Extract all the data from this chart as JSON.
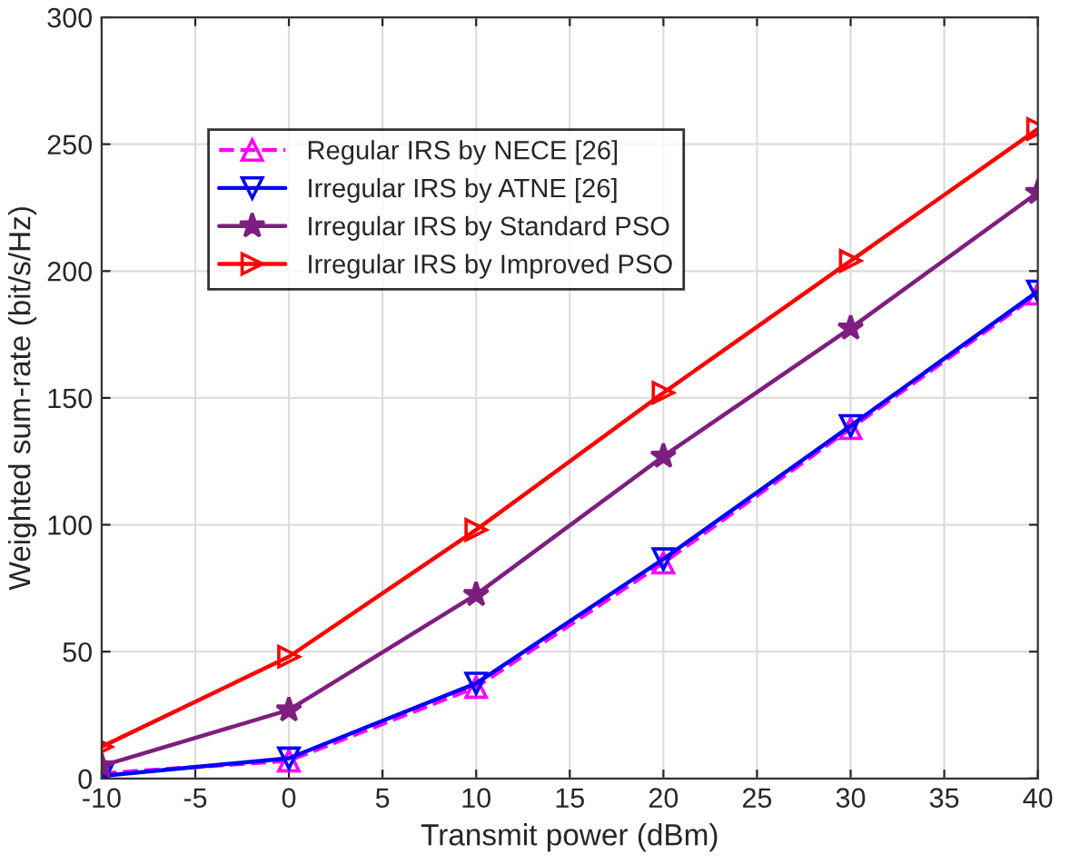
{
  "chart_data": {
    "type": "line",
    "xlabel": "Transmit power (dBm)",
    "ylabel": "Weighted sum-rate (bit/s/Hz)",
    "x": [
      -10,
      0,
      10,
      20,
      30,
      40
    ],
    "series": [
      {
        "name": "Regular IRS by NECE [26]",
        "color": "#ff00ff",
        "values": [
          2,
          7,
          36,
          85,
          138,
          191
        ],
        "marker": "triangle",
        "line_style": "dashed"
      },
      {
        "name": "Irregular IRS by ATNE [26]",
        "color": "#0000ff",
        "values": [
          1,
          8,
          37.5,
          86.5,
          139,
          192
        ],
        "marker": "triangle_down",
        "line_style": "solid"
      },
      {
        "name": "Irregular IRS by Standard PSO",
        "color": "#7e1e80",
        "values": [
          5,
          27,
          72.5,
          127,
          177.5,
          231
        ],
        "marker": "star",
        "line_style": "solid"
      },
      {
        "name": "Irregular IRS by Improved PSO",
        "color": "#ff0000",
        "values": [
          12.5,
          48,
          98,
          152,
          204,
          256
        ],
        "marker": "triangle_right",
        "line_style": "solid"
      }
    ],
    "xlim": [
      -10,
      40
    ],
    "xticks": [
      -10,
      -5,
      0,
      5,
      10,
      15,
      20,
      25,
      30,
      35,
      40
    ],
    "ylim": [
      0,
      300
    ],
    "yticks": [
      0,
      50,
      100,
      150,
      200,
      250,
      300
    ],
    "grid": true,
    "legend": "top left"
  }
}
